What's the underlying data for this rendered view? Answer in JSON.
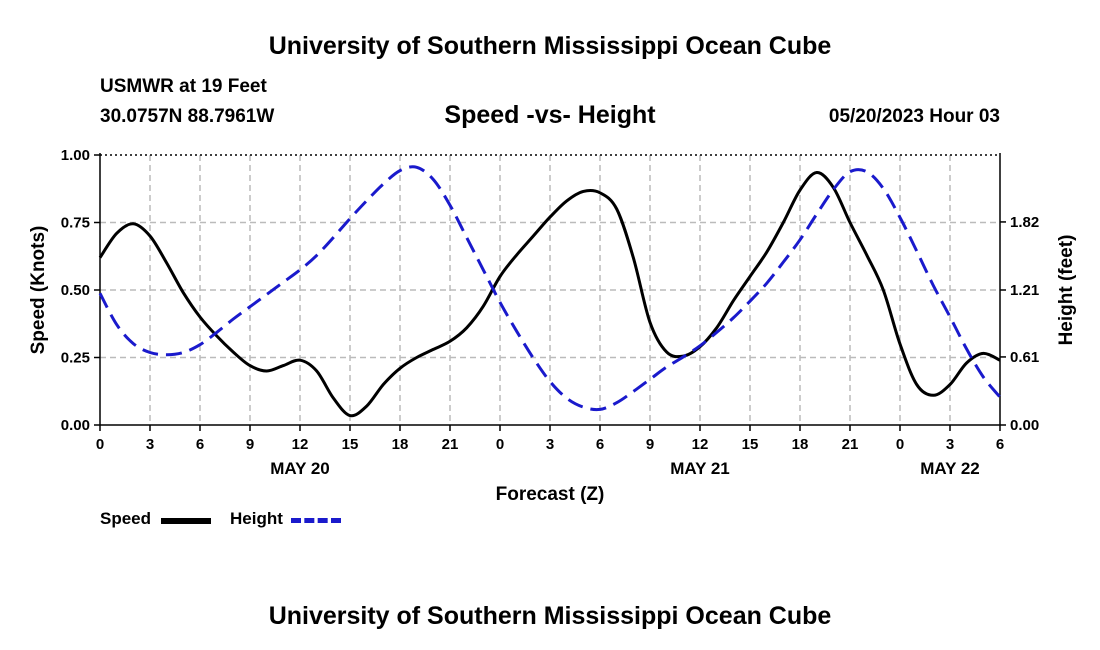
{
  "header": {
    "title": "University of Southern Mississippi Ocean Cube",
    "station": "USMWR at 19 Feet",
    "coords": "30.0757N  88.7961W",
    "datetime": "05/20/2023 Hour 03"
  },
  "footer": {
    "title": "University of Southern Mississippi Ocean Cube"
  },
  "colors": {
    "speed": "#000000",
    "height": "#1a1acc",
    "grid": "#bbbbbb"
  },
  "chart_data": {
    "type": "line",
    "title": "Speed -vs- Height",
    "xlabel": "Forecast (Z)",
    "ylabel": "Speed (Knots)",
    "y2label": "Height (feet)",
    "xlim": [
      0,
      54
    ],
    "ylim": [
      0,
      1.0
    ],
    "y2lim": [
      0,
      2.42
    ],
    "x_ticks": [
      0,
      3,
      6,
      9,
      12,
      15,
      18,
      21,
      24,
      27,
      30,
      33,
      36,
      39,
      42,
      45,
      48,
      51,
      54
    ],
    "x_tick_labels": [
      "0",
      "3",
      "6",
      "9",
      "12",
      "15",
      "18",
      "21",
      "0",
      "3",
      "6",
      "9",
      "12",
      "15",
      "18",
      "21",
      "0",
      "3",
      "6"
    ],
    "day_labels": [
      {
        "x": 12,
        "label": "MAY 20"
      },
      {
        "x": 36,
        "label": "MAY 21"
      },
      {
        "x": 51,
        "label": "MAY 22"
      }
    ],
    "y_ticks": [
      0,
      0.25,
      0.5,
      0.75,
      1.0
    ],
    "y_tick_labels": [
      "0.00",
      "0.25",
      "0.50",
      "0.75",
      "1.00"
    ],
    "y2_ticks": [
      0,
      0.61,
      1.21,
      1.82
    ],
    "y2_tick_labels": [
      "0.00",
      "0.61",
      "1.21",
      "1.82"
    ],
    "grid": true,
    "legend_position": "bottom-left",
    "series": [
      {
        "name": "Speed",
        "axis": "left",
        "x": [
          0,
          1,
          2,
          3,
          4,
          5,
          6,
          7,
          8,
          9,
          10,
          11,
          12,
          13,
          14,
          15,
          16,
          17,
          18,
          19,
          20,
          21,
          22,
          23,
          24,
          25,
          26,
          27,
          28,
          29,
          30,
          31,
          32,
          33,
          34,
          35,
          36,
          37,
          38,
          39,
          40,
          41,
          42,
          43,
          44,
          45,
          46,
          47,
          48,
          49,
          50,
          51,
          52,
          53,
          54
        ],
        "values": [
          0.62,
          0.71,
          0.745,
          0.7,
          0.6,
          0.49,
          0.4,
          0.33,
          0.27,
          0.22,
          0.2,
          0.22,
          0.24,
          0.2,
          0.1,
          0.035,
          0.07,
          0.15,
          0.21,
          0.25,
          0.28,
          0.31,
          0.36,
          0.44,
          0.55,
          0.63,
          0.7,
          0.77,
          0.83,
          0.865,
          0.86,
          0.8,
          0.62,
          0.38,
          0.27,
          0.255,
          0.29,
          0.36,
          0.46,
          0.55,
          0.64,
          0.75,
          0.87,
          0.935,
          0.88,
          0.75,
          0.63,
          0.5,
          0.3,
          0.15,
          0.11,
          0.15,
          0.23,
          0.265,
          0.24
        ]
      },
      {
        "name": "Height",
        "axis": "right",
        "x": [
          0,
          1,
          2,
          3,
          4,
          5,
          6,
          7,
          8,
          9,
          10,
          11,
          12,
          13,
          14,
          15,
          16,
          17,
          18,
          19,
          20,
          21,
          22,
          23,
          24,
          25,
          26,
          27,
          28,
          29,
          30,
          31,
          32,
          33,
          34,
          35,
          36,
          37,
          38,
          39,
          40,
          41,
          42,
          43,
          44,
          45,
          46,
          47,
          48,
          49,
          50,
          51,
          52,
          53,
          54
        ],
        "values": [
          1.18,
          0.9,
          0.73,
          0.65,
          0.63,
          0.65,
          0.72,
          0.83,
          0.95,
          1.06,
          1.17,
          1.28,
          1.39,
          1.52,
          1.68,
          1.85,
          2.01,
          2.16,
          2.28,
          2.31,
          2.2,
          1.97,
          1.68,
          1.39,
          1.1,
          0.84,
          0.6,
          0.39,
          0.24,
          0.16,
          0.14,
          0.2,
          0.3,
          0.41,
          0.52,
          0.61,
          0.71,
          0.83,
          0.96,
          1.11,
          1.27,
          1.46,
          1.66,
          1.89,
          2.11,
          2.27,
          2.27,
          2.12,
          1.86,
          1.56,
          1.25,
          0.97,
          0.68,
          0.43,
          0.25
        ]
      }
    ],
    "legend": [
      {
        "name": "Speed"
      },
      {
        "name": "Height"
      }
    ]
  }
}
